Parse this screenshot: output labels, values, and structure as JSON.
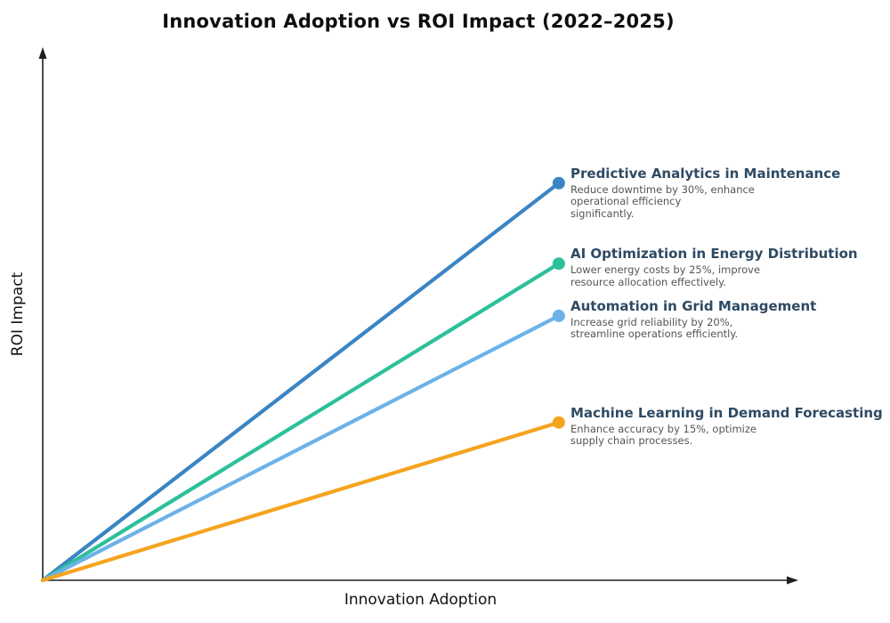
{
  "chart_data": {
    "type": "line",
    "title": "Innovation Adoption vs ROI Impact (2022–2025)",
    "xlabel": "Innovation Adoption",
    "ylabel": "ROI Impact",
    "x_range": [
      0,
      1
    ],
    "y_range": [
      0,
      1
    ],
    "grid": false,
    "ticks": false,
    "axes_have_arrowheads": true,
    "axis_color": "#1f1f1f",
    "title_color": "#0e0e0e",
    "annotation_title_color": "#2e4a63",
    "annotation_desc_color": "#555555",
    "series": [
      {
        "name": "Predictive Analytics in Maintenance",
        "color": "#3b85c4",
        "x": [
          0,
          0.683
        ],
        "y": [
          0,
          0.745
        ],
        "endpoint_marker": "dot",
        "stated_benefit_pct": 30,
        "desc_lines": [
          "Reduce downtime by 30%, enhance",
          "operational efficiency",
          "significantly."
        ]
      },
      {
        "name": "AI Optimization in Energy Distribution",
        "color": "#2cc09a",
        "x": [
          0,
          0.683
        ],
        "y": [
          0,
          0.594
        ],
        "endpoint_marker": "dot",
        "stated_benefit_pct": 25,
        "desc_lines": [
          "Lower energy costs by 25%, improve",
          "resource allocation effectively."
        ]
      },
      {
        "name": "Automation in Grid Management",
        "color": "#6cb2e8",
        "x": [
          0,
          0.683
        ],
        "y": [
          0,
          0.496
        ],
        "endpoint_marker": "dot",
        "stated_benefit_pct": 20,
        "desc_lines": [
          "Increase grid reliability by 20%,",
          "streamline operations efficiently."
        ]
      },
      {
        "name": "Machine Learning in Demand Forecasting",
        "color": "#f5a41f",
        "x": [
          0,
          0.683
        ],
        "y": [
          0,
          0.296
        ],
        "endpoint_marker": "dot",
        "stated_benefit_pct": 15,
        "desc_lines": [
          "Enhance accuracy by 15%, optimize",
          "supply chain processes."
        ]
      }
    ]
  }
}
